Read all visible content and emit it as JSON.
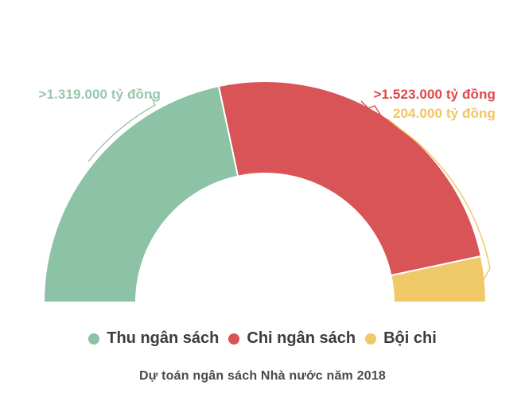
{
  "chart_data": {
    "type": "pie",
    "variant": "half-donut-gauge",
    "title": "Dự toán ngân sách Nhà nước năm 2018",
    "unit": "tỷ đồng",
    "angle_span_deg": 180,
    "legend_position": "bottom",
    "grid": false,
    "background": "#ffffff",
    "series": [
      {
        "name": "Thu ngân sách",
        "value": 1319000,
        "value_label": ">1.319.000 tỷ đồng",
        "color": "#8cc2a6",
        "label_color": "#98c7ac"
      },
      {
        "name": "Chi ngân sách",
        "value": 1523000,
        "value_label": ">1.523.000 tỷ đồng",
        "color": "#d85457",
        "label_color": "#e1474b"
      },
      {
        "name": "Bội chi",
        "value": 204000,
        "value_label": "204.000 tỷ đồng",
        "color": "#efc867",
        "label_color": "#f2c55e"
      }
    ],
    "text_colors": {
      "legend": "#3c3c3c",
      "title": "#4a4a4a"
    }
  }
}
